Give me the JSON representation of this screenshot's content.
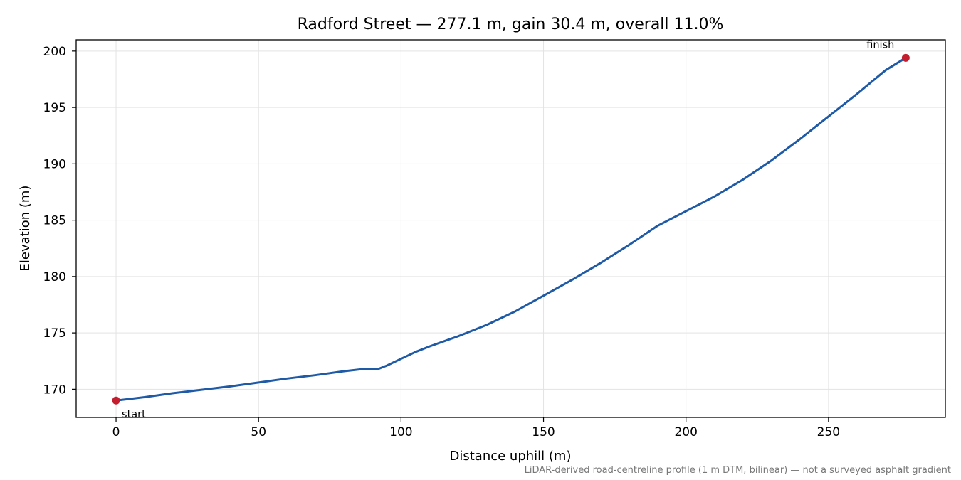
{
  "chart_data": {
    "type": "line",
    "title": "Radford Street — 277.1 m, gain 30.4 m, overall 11.0%",
    "xlabel": "Distance uphill (m)",
    "ylabel": "Elevation (m)",
    "xlim": [
      -14,
      291
    ],
    "ylim": [
      167.5,
      201.0
    ],
    "xticks": [
      0,
      50,
      100,
      150,
      200,
      250
    ],
    "xtick_labels": [
      "0",
      "50",
      "100",
      "150",
      "200",
      "250"
    ],
    "yticks": [
      170,
      175,
      180,
      185,
      190,
      195,
      200
    ],
    "ytick_labels": [
      "170",
      "175",
      "180",
      "185",
      "190",
      "195",
      "200"
    ],
    "grid": true,
    "series": [
      {
        "color": "#1f5aa6",
        "x": [
          0,
          10,
          20,
          30,
          40,
          50,
          60,
          70,
          80,
          87,
          92,
          95,
          100,
          105,
          110,
          120,
          130,
          140,
          150,
          160,
          170,
          180,
          190,
          200,
          210,
          220,
          230,
          240,
          250,
          260,
          270,
          277.1
        ],
        "y": [
          169.0,
          169.3,
          169.65,
          169.95,
          170.25,
          170.6,
          170.95,
          171.25,
          171.6,
          171.8,
          171.8,
          172.1,
          172.7,
          173.3,
          173.8,
          174.7,
          175.7,
          176.9,
          178.3,
          179.7,
          181.2,
          182.8,
          184.5,
          185.8,
          187.1,
          188.6,
          190.3,
          192.2,
          194.2,
          196.2,
          198.3,
          199.4
        ]
      }
    ],
    "markers": [
      {
        "x": 0,
        "y": 169.0,
        "label": "start",
        "color": "#c41e2e"
      },
      {
        "x": 277.1,
        "y": 199.4,
        "label": "finish",
        "color": "#c41e2e"
      }
    ],
    "footnote": "LiDAR-derived road-centreline profile (1 m DTM, bilinear) — not a surveyed asphalt gradient"
  }
}
